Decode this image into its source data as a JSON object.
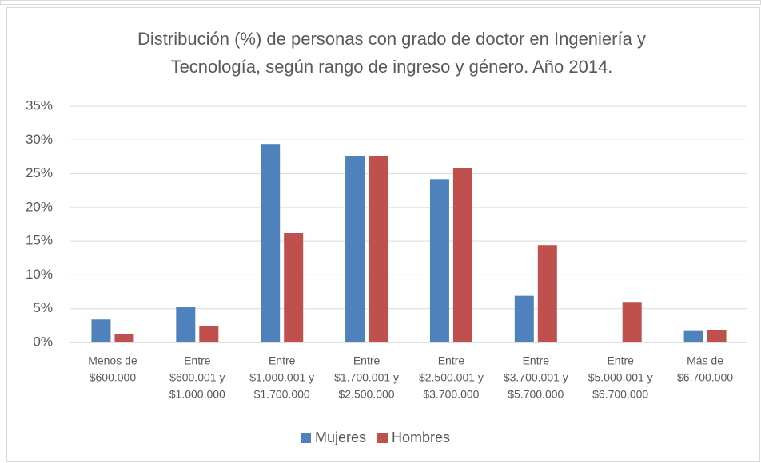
{
  "chart_data": {
    "type": "bar",
    "title": [
      "Distribución (%) de personas con grado de doctor en Ingeniería y",
      "Tecnología, según rango de ingreso y género. Año 2014."
    ],
    "categories": [
      [
        "Menos de",
        "$600.000"
      ],
      [
        "Entre",
        "$600.001 y",
        "$1.000.000"
      ],
      [
        "Entre",
        "$1.000.001 y",
        "$1.700.000"
      ],
      [
        "Entre",
        "$1.700.001 y",
        "$2.500.000"
      ],
      [
        "Entre",
        "$2.500.001 y",
        "$3.700.000"
      ],
      [
        "Entre",
        "$3.700.001 y",
        "$5.700.000"
      ],
      [
        "Entre",
        "$5.000.001 y",
        "$6.700.000"
      ],
      [
        "Más de",
        "$6.700.000"
      ]
    ],
    "series": [
      {
        "name": "Mujeres",
        "color": "#4f81bd",
        "values": [
          3.4,
          5.2,
          29.3,
          27.6,
          24.2,
          6.9,
          0,
          1.7
        ]
      },
      {
        "name": "Hombres",
        "color": "#c0504d",
        "values": [
          1.2,
          2.4,
          16.2,
          27.6,
          25.8,
          14.4,
          6.0,
          1.8
        ]
      }
    ],
    "ylim": [
      0,
      35
    ],
    "yticks": [
      {
        "value": 0,
        "label": "0%"
      },
      {
        "value": 5,
        "label": "5%"
      },
      {
        "value": 10,
        "label": "10%"
      },
      {
        "value": 15,
        "label": "15%"
      },
      {
        "value": 20,
        "label": "20%"
      },
      {
        "value": 25,
        "label": "25%"
      },
      {
        "value": 30,
        "label": "30%"
      },
      {
        "value": 35,
        "label": "35%"
      }
    ],
    "grid": true,
    "legend": "bottom"
  }
}
